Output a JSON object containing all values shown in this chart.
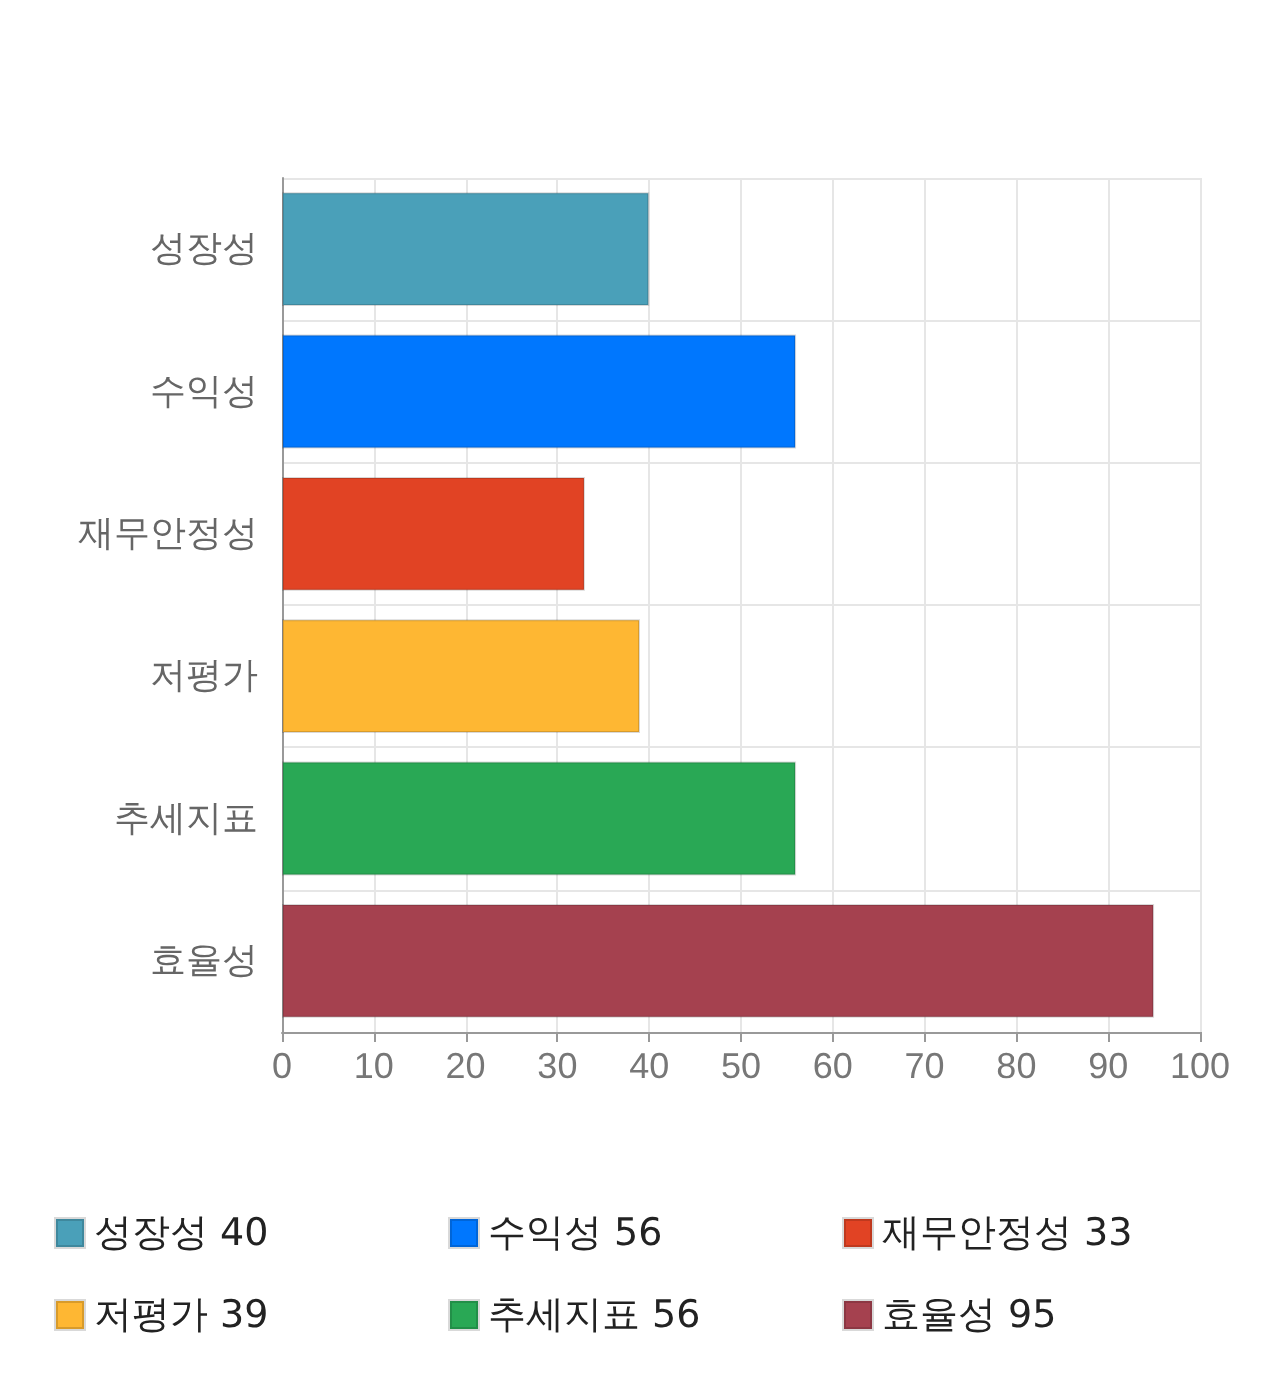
{
  "chart_data": {
    "type": "bar",
    "orientation": "horizontal",
    "stacked": true,
    "categories": [
      "성장성",
      "수익성",
      "재무안정성",
      "저평가",
      "추세지표",
      "효율성"
    ],
    "series": [
      {
        "name": "성장성 40",
        "color": "#4aa0b9",
        "values": [
          40,
          null,
          null,
          null,
          null,
          null
        ]
      },
      {
        "name": "수익성 56",
        "color": "#0077fe",
        "values": [
          null,
          56,
          null,
          null,
          null,
          null
        ]
      },
      {
        "name": "재무안정성 33",
        "color": "#e14324",
        "values": [
          null,
          null,
          33,
          null,
          null,
          null
        ]
      },
      {
        "name": "저평가 39",
        "color": "#feb733",
        "values": [
          null,
          null,
          null,
          39,
          null,
          null
        ]
      },
      {
        "name": "추세지표 56",
        "color": "#29a855",
        "values": [
          null,
          null,
          null,
          null,
          56,
          null
        ]
      },
      {
        "name": "효율성 95",
        "color": "#a5414f",
        "values": [
          null,
          null,
          null,
          null,
          null,
          95
        ]
      }
    ],
    "xlim": [
      0,
      100
    ],
    "xticks": [
      0,
      10,
      20,
      30,
      40,
      50,
      60,
      70,
      80,
      90,
      100
    ],
    "grid": true,
    "legend": "bottom"
  }
}
